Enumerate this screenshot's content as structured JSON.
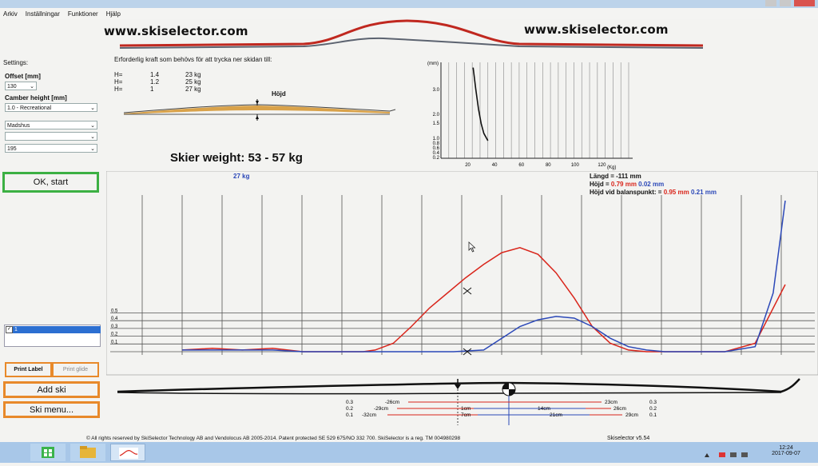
{
  "menu": [
    "Arkiv",
    "Inställningar",
    "Funktioner",
    "Hjälp"
  ],
  "banner": {
    "left_url": "www.skiselector.com",
    "right_url": "www.skiselector.com"
  },
  "settings": {
    "title": "Settings:",
    "offset_label": "Offset [mm]",
    "offset_value": "130",
    "camber_label": "Camber height [mm]",
    "camber_value": "1.0 - Recreational",
    "brand_value": "Madshus",
    "model_value": "",
    "length_value": "195"
  },
  "force": {
    "heading": "Erforderlig kraft som behövs för att trycka ner skidan till:",
    "rows": [
      {
        "h": "H=",
        "v": "1.4",
        "kg": "23 kg"
      },
      {
        "h": "H=",
        "v": "1.2",
        "kg": "25 kg"
      },
      {
        "h": "H=",
        "v": "1",
        "kg": "27 kg"
      }
    ],
    "hojd_label": "Höjd"
  },
  "skier_weight": "Skier weight: 53 - 57 kg",
  "chart_data": [
    {
      "type": "line",
      "title": "",
      "xlabel": "(Kg)",
      "ylabel": "(mm)",
      "x_ticks": [
        "20",
        "40",
        "60",
        "80",
        "100",
        "120"
      ],
      "y_ticks": [
        "3.0",
        "2.0",
        "1.5",
        "1.0",
        "0.8",
        "0.6",
        "0.4",
        "0.2"
      ],
      "series": [
        {
          "x": [
            24,
            26,
            28,
            30,
            32,
            35
          ],
          "y": [
            3.9,
            3.0,
            2.2,
            1.6,
            1.2,
            0.9
          ]
        }
      ]
    },
    {
      "type": "line",
      "title": "",
      "weight_label": "27 kg",
      "y_ticks": [
        "0.5",
        "0.4",
        "0.3",
        "0.2",
        "0.1"
      ],
      "series": [
        {
          "color": "#d9251b",
          "x": [
            0,
            5,
            10,
            15,
            20,
            25,
            30,
            32,
            35,
            38,
            41,
            44,
            47,
            50,
            53,
            56,
            59,
            62,
            65,
            68,
            71,
            74,
            77,
            80,
            85,
            90,
            95,
            100
          ],
          "y": [
            0.01,
            0.02,
            0.01,
            0.02,
            0.0,
            0.0,
            0.0,
            0.01,
            0.05,
            0.15,
            0.26,
            0.35,
            0.44,
            0.52,
            0.59,
            0.62,
            0.58,
            0.47,
            0.32,
            0.15,
            0.05,
            0.01,
            0.0,
            0.0,
            0.0,
            0.0,
            0.05,
            0.4
          ]
        },
        {
          "color": "#2b48b8",
          "x": [
            0,
            5,
            10,
            15,
            20,
            25,
            30,
            35,
            40,
            45,
            50,
            53,
            56,
            59,
            62,
            65,
            68,
            71,
            74,
            77,
            80,
            85,
            90,
            95,
            98,
            100
          ],
          "y": [
            0.01,
            0.01,
            0.01,
            0.01,
            0.0,
            0.0,
            0.0,
            0.0,
            0.0,
            0.0,
            0.01,
            0.08,
            0.15,
            0.19,
            0.21,
            0.2,
            0.15,
            0.08,
            0.03,
            0.01,
            0.0,
            0.0,
            0.0,
            0.03,
            0.35,
            0.9
          ]
        }
      ],
      "readout": {
        "langd_label": "Längd =",
        "langd_value": "-111 mm",
        "hojd_label": "Höjd =",
        "hojd_red": "0.79 mm",
        "hojd_blue": "0.02 mm",
        "balans_label": "Höjd vid balanspunkt: =",
        "balans_red": "0.95 mm",
        "balans_blue": "0.21 mm"
      }
    }
  ],
  "buttons": {
    "ok": "OK, start",
    "print_label": "Print Label",
    "print_glide": "Print glide",
    "add_ski": "Add ski",
    "ski_menu": "Ski menu..."
  },
  "list": {
    "item": "1"
  },
  "measure": {
    "left_nums": [
      "0.3",
      "0.2",
      "0.1"
    ],
    "right_nums": [
      "0.3",
      "0.2",
      "0.1"
    ],
    "row1": [
      "-26cm",
      "23cm"
    ],
    "row2": [
      "-29cm",
      "1cm",
      "14cm",
      "26cm"
    ],
    "row3": [
      "-32cm",
      "7cm",
      "21cm",
      "29cm"
    ]
  },
  "footer": {
    "copyright": "© All rights reserved by SkiSelector Technology AB and Vendolocus AB 2005-2014. Patent protected SE 529 675/NO 332 700. SkiSelector is a reg. TM 004980298",
    "version": "Skiselector v5.54"
  },
  "taskbar": {
    "time": "12:24",
    "date": "2017-09-07"
  },
  "colors": {
    "red": "#d9251b",
    "blue": "#2b48b8",
    "ok_border": "#3cb043",
    "btn_border": "#e8892a"
  }
}
